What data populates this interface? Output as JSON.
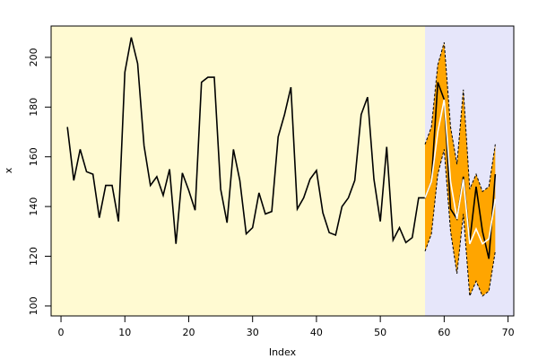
{
  "chart_data": {
    "type": "line",
    "xlabel": "Index",
    "ylabel": "x",
    "xlim": [
      -1.55,
      70.9
    ],
    "ylim": [
      96.0,
      212.6
    ],
    "xticks": [
      0,
      10,
      20,
      30,
      40,
      50,
      60,
      70
    ],
    "yticks": [
      100,
      120,
      140,
      160,
      180,
      200
    ],
    "background_color": "#fffad2",
    "shade_from": 57,
    "shade_color": "#e6e6fa",
    "band_color": "#ffa500",
    "x": [
      1,
      2,
      3,
      4,
      5,
      6,
      7,
      8,
      9,
      10,
      11,
      12,
      13,
      14,
      15,
      16,
      17,
      18,
      19,
      20,
      21,
      22,
      23,
      24,
      25,
      26,
      27,
      28,
      29,
      30,
      31,
      32,
      33,
      34,
      35,
      36,
      37,
      38,
      39,
      40,
      41,
      42,
      43,
      44,
      45,
      46,
      47,
      48,
      49,
      50,
      51,
      52,
      53,
      54,
      55,
      56,
      57,
      58,
      59,
      60,
      61,
      62,
      63,
      64,
      65,
      66,
      67,
      68
    ],
    "series": [
      {
        "role": "upper",
        "color": "#000000",
        "dashed": true,
        "values": [
          null,
          null,
          null,
          null,
          null,
          null,
          null,
          null,
          null,
          null,
          null,
          null,
          null,
          null,
          null,
          null,
          null,
          null,
          null,
          null,
          null,
          null,
          null,
          null,
          null,
          null,
          null,
          null,
          null,
          null,
          null,
          null,
          null,
          null,
          null,
          null,
          null,
          null,
          null,
          null,
          null,
          null,
          null,
          null,
          null,
          null,
          null,
          null,
          null,
          null,
          null,
          null,
          null,
          null,
          null,
          null,
          165,
          172,
          197,
          206,
          172,
          157,
          187,
          147,
          153,
          146,
          148,
          165
        ]
      },
      {
        "role": "lower",
        "color": "#000000",
        "dashed": true,
        "values": [
          null,
          null,
          null,
          null,
          null,
          null,
          null,
          null,
          null,
          null,
          null,
          null,
          null,
          null,
          null,
          null,
          null,
          null,
          null,
          null,
          null,
          null,
          null,
          null,
          null,
          null,
          null,
          null,
          null,
          null,
          null,
          null,
          null,
          null,
          null,
          null,
          null,
          null,
          null,
          null,
          null,
          null,
          null,
          null,
          null,
          null,
          null,
          null,
          null,
          null,
          null,
          null,
          null,
          null,
          null,
          null,
          122,
          129,
          153,
          163,
          130,
          113,
          137,
          104,
          110,
          104,
          106,
          122
        ]
      },
      {
        "role": "actual",
        "color": "#000000",
        "dashed": false,
        "values": [
          172,
          150.5,
          163,
          154,
          153,
          135.5,
          148.5,
          148.5,
          134,
          194,
          208,
          197.5,
          164.5,
          148.5,
          152,
          144.5,
          155,
          125,
          153.5,
          146.5,
          138.5,
          190,
          192,
          192,
          147,
          133.5,
          163,
          150.5,
          129,
          131.5,
          145.5,
          137,
          138,
          168,
          177,
          188,
          139,
          143.5,
          151,
          154.5,
          137.5,
          129.5,
          128.5,
          140,
          143.5,
          150.5,
          177,
          184,
          151,
          134,
          164,
          126.5,
          131.5,
          125.5,
          127.5,
          143.5,
          143.5,
          150,
          190,
          183,
          139,
          135,
          152,
          126,
          148,
          130,
          119,
          153
        ]
      },
      {
        "role": "forecast",
        "color": "#ffffff",
        "dashed": false,
        "values": [
          null,
          null,
          null,
          null,
          null,
          null,
          null,
          null,
          null,
          null,
          null,
          null,
          null,
          null,
          null,
          null,
          null,
          null,
          null,
          null,
          null,
          null,
          null,
          null,
          null,
          null,
          null,
          null,
          null,
          null,
          null,
          null,
          null,
          null,
          null,
          null,
          null,
          null,
          null,
          null,
          null,
          null,
          null,
          null,
          null,
          null,
          null,
          null,
          null,
          null,
          null,
          null,
          null,
          null,
          null,
          null,
          143.5,
          150,
          170,
          183,
          150,
          135,
          151,
          125,
          131,
          125,
          127,
          143
        ]
      }
    ]
  }
}
